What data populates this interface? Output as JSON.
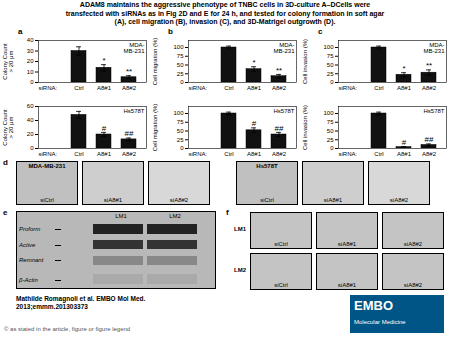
{
  "title": "ADAM8 maintains the aggressive phenotype of TNBC cells in 3D-culture A–DCells were\ntransfected with siRNAs as in Fig 2D and E for 24 h, and tested for colony formation in soft agar\n(A), cell migration (B), invasion (C), and 3D-Matrigel outgrowth (D).",
  "chart_data": [
    {
      "type": "bar",
      "title": "a",
      "subtitle": "MDA-\nMB-231",
      "xlabel": "siRNA:",
      "ylabel": "Colony Count\n> 20 μm",
      "categories": [
        "Ctrl",
        "A8#1",
        "A8#2"
      ],
      "values": [
        30,
        14,
        5
      ],
      "errors": [
        4,
        3,
        1.5
      ],
      "color": "#111111",
      "ylim": [
        0,
        40
      ],
      "yticks": [
        0,
        10,
        20,
        30,
        40
      ],
      "annotations": [
        {
          "category": "A8#1",
          "text": "*"
        },
        {
          "category": "A8#2",
          "text": "**"
        }
      ]
    },
    {
      "type": "bar",
      "title": "b",
      "subtitle": "MDA-\nMB-231",
      "xlabel": "siRNA:",
      "ylabel": "Cell migration (%)",
      "categories": [
        "Ctrl",
        "A8#1",
        "A8#2"
      ],
      "values": [
        100,
        38,
        18
      ],
      "errors": [
        4,
        7,
        5
      ],
      "color": "#111111",
      "ylim": [
        0,
        120
      ],
      "yticks": [
        0,
        25,
        50,
        75,
        100
      ],
      "annotations": [
        {
          "category": "A8#1",
          "text": "*"
        },
        {
          "category": "A8#2",
          "text": "**"
        }
      ]
    },
    {
      "type": "bar",
      "title": "c",
      "subtitle": "MDA-\nMB-231",
      "xlabel": "siRNA:",
      "ylabel": "Cell invasion (%)",
      "categories": [
        "Ctrl",
        "A8#1",
        "A8#2"
      ],
      "values": [
        100,
        22,
        28
      ],
      "errors": [
        4,
        6,
        8
      ],
      "color": "#111111",
      "ylim": [
        0,
        120
      ],
      "yticks": [
        0,
        25,
        50,
        75,
        100
      ],
      "annotations": [
        {
          "category": "A8#1",
          "text": "*"
        },
        {
          "category": "A8#2",
          "text": "**"
        }
      ]
    },
    {
      "type": "bar",
      "subtitle": "Hs578T",
      "xlabel": "siRNA:",
      "ylabel": "Colony Count\n> 20 μm",
      "categories": [
        "Ctrl",
        "A8#1",
        "A8#2"
      ],
      "values": [
        48,
        20,
        13
      ],
      "errors": [
        5,
        3,
        2
      ],
      "color": "#111111",
      "ylim": [
        0,
        60
      ],
      "yticks": [
        0,
        20,
        40,
        60
      ],
      "annotations": [
        {
          "category": "A8#1",
          "text": "#"
        },
        {
          "category": "A8#2",
          "text": "##"
        }
      ]
    },
    {
      "type": "bar",
      "subtitle": "Hs578T",
      "xlabel": "siRNA:",
      "ylabel": "Cell migration (%)",
      "categories": [
        "Ctrl",
        "A8#1",
        "A8#2"
      ],
      "values": [
        100,
        52,
        40
      ],
      "errors": [
        4,
        7,
        6
      ],
      "color": "#111111",
      "ylim": [
        0,
        120
      ],
      "yticks": [
        0,
        25,
        50,
        75,
        100
      ],
      "annotations": [
        {
          "category": "A8#1",
          "text": "#"
        },
        {
          "category": "A8#2",
          "text": "##"
        }
      ]
    },
    {
      "type": "bar",
      "subtitle": "Hs578T",
      "xlabel": "siRNA:",
      "ylabel": "Cell invasion (%)",
      "categories": [
        "Ctrl",
        "A8#1",
        "A8#2"
      ],
      "values": [
        100,
        4,
        10
      ],
      "errors": [
        4,
        1.5,
        3
      ],
      "color": "#111111",
      "ylim": [
        0,
        120
      ],
      "yticks": [
        0,
        25,
        50,
        75,
        100
      ],
      "annotations": [
        {
          "category": "A8#1",
          "text": "#"
        },
        {
          "category": "A8#2",
          "text": "##"
        }
      ]
    }
  ],
  "annotations": [
    {
      "panel": "d",
      "groups": [
        {
          "title": "MDA-MB-231",
          "labels": [
            "siCtrl",
            "siA8#1",
            "siA8#2"
          ]
        },
        {
          "title": "Hs578T",
          "labels": [
            "siCtrl",
            "siA8#1",
            "siA8#2"
          ]
        }
      ]
    },
    {
      "panel": "e",
      "rows": [
        "Proform",
        "Active",
        "Remnant",
        "β-Actin"
      ],
      "columns": [
        "LM1",
        "LM2"
      ]
    },
    {
      "panel": "f",
      "rows": [
        "LM1",
        "LM2"
      ],
      "columns": [
        "siCtrl",
        "siA8#1",
        "siA8#2"
      ]
    },
    {
      "caption": "Mathilde Romagnoli et al. EMBO Mol Med.\n2013;emmm.201303373"
    },
    {
      "footnote": "© as stated in the article, figure or figure legend"
    },
    {
      "logo": [
        "EMBO",
        "Molecular Medicine"
      ]
    }
  ]
}
